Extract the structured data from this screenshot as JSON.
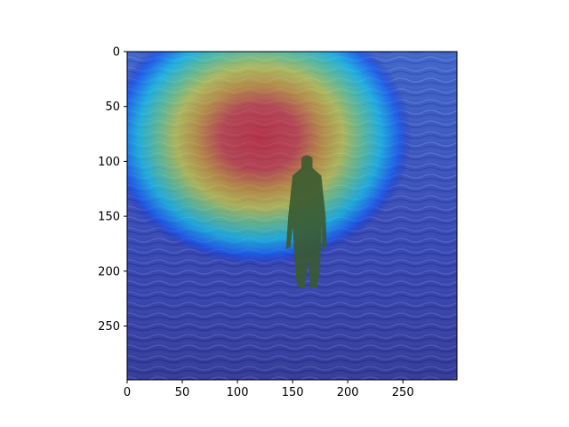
{
  "chart_data": {
    "type": "heatmap",
    "title": "",
    "xlabel": "",
    "ylabel": "",
    "xlim": [
      0,
      299
    ],
    "ylim": [
      299,
      0
    ],
    "x_ticks": [
      0,
      50,
      100,
      150,
      200,
      250
    ],
    "y_ticks": [
      0,
      50,
      100,
      150,
      200,
      250
    ],
    "colormap": "jet",
    "overlay_alpha": 0.5,
    "grid": false,
    "background_image": "person standing waist-deep in rippling sea water",
    "hotspot": {
      "center": [
        120,
        78
      ],
      "radius_x": 95,
      "radius_y": 60
    }
  }
}
